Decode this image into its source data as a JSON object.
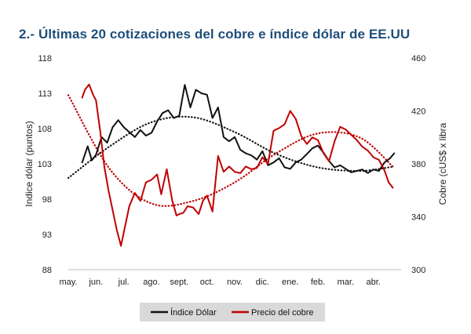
{
  "title": "2.- Últimas 20 cotizaciones del cobre e índice dólar de EE.UU",
  "colors": {
    "dollar": "#111111",
    "copper": "#c00000",
    "title": "#1f4e79",
    "legend_bg": "#d9d9d9"
  },
  "chart_data": {
    "type": "line",
    "x_categories": [
      "may.",
      "jun.",
      "jul.",
      "ago.",
      "sept.",
      "oct.",
      "nov.",
      "dic.",
      "ene.",
      "feb.",
      "mar.",
      "abr."
    ],
    "y_left": {
      "label": "Indice dólar (puntos)",
      "ticks": [
        88,
        93,
        98,
        103,
        108,
        113,
        118
      ],
      "range": [
        88,
        118
      ]
    },
    "y_right": {
      "label": "Cobre (cUS$ x libra",
      "ticks": [
        300,
        340,
        380,
        420,
        460
      ],
      "range": [
        300,
        460
      ]
    },
    "series": [
      {
        "name": "Índice Dólar",
        "axis": "left",
        "color": "#111111",
        "x": [
          0.5,
          0.7,
          0.85,
          1.0,
          1.2,
          1.4,
          1.6,
          1.8,
          2.0,
          2.2,
          2.4,
          2.6,
          2.8,
          3.0,
          3.2,
          3.4,
          3.6,
          3.8,
          4.0,
          4.2,
          4.4,
          4.6,
          4.8,
          5.0,
          5.2,
          5.4,
          5.6,
          5.8,
          6.0,
          6.2,
          6.4,
          6.6,
          6.8,
          7.0,
          7.2,
          7.4,
          7.6,
          7.8,
          8.0,
          8.2,
          8.4,
          8.6,
          8.8,
          9.0,
          9.2,
          9.4,
          9.6,
          9.8,
          10.0,
          10.2,
          10.4,
          10.6,
          10.8,
          11.0,
          11.2,
          11.4,
          11.6,
          11.75
        ],
        "y": [
          103.2,
          105.5,
          103.5,
          104.3,
          106.8,
          106.0,
          108.2,
          109.2,
          108.2,
          107.5,
          106.8,
          107.8,
          107.0,
          107.4,
          109.0,
          110.2,
          110.6,
          109.5,
          109.8,
          114.2,
          111.0,
          113.5,
          113.0,
          112.8,
          109.5,
          111.0,
          106.8,
          106.2,
          106.8,
          105.0,
          104.5,
          104.2,
          103.6,
          104.8,
          102.8,
          103.2,
          103.8,
          102.5,
          102.3,
          103.2,
          103.6,
          104.4,
          105.2,
          105.6,
          104.6,
          103.4,
          102.5,
          102.8,
          102.3,
          101.8,
          102.0,
          102.2,
          101.7,
          102.2,
          102.0,
          103.2,
          103.8,
          104.5
        ]
      },
      {
        "name": "Precio del cobre",
        "axis": "right",
        "color": "#c00000",
        "x": [
          0.5,
          0.6,
          0.75,
          0.9,
          1.0,
          1.15,
          1.3,
          1.45,
          1.6,
          1.75,
          1.9,
          2.05,
          2.2,
          2.4,
          2.6,
          2.8,
          3.0,
          3.2,
          3.35,
          3.55,
          3.75,
          3.9,
          4.0,
          4.15,
          4.3,
          4.5,
          4.7,
          4.85,
          5.0,
          5.2,
          5.4,
          5.6,
          5.8,
          6.0,
          6.2,
          6.4,
          6.6,
          6.8,
          7.0,
          7.2,
          7.4,
          7.6,
          7.8,
          8.0,
          8.2,
          8.4,
          8.6,
          8.8,
          9.0,
          9.2,
          9.4,
          9.6,
          9.8,
          10.0,
          10.2,
          10.4,
          10.6,
          10.8,
          11.0,
          11.2,
          11.4,
          11.55,
          11.7
        ],
        "y": [
          430,
          436,
          440,
          432,
          428,
          405,
          378,
          360,
          345,
          330,
          318,
          333,
          348,
          358,
          352,
          366,
          368,
          372,
          357,
          376,
          352,
          341,
          342,
          343,
          348,
          347,
          342,
          352,
          356,
          344,
          386,
          374,
          378,
          374,
          373,
          378,
          376,
          377,
          385,
          380,
          405,
          407,
          410,
          420,
          414,
          401,
          395,
          400,
          398,
          388,
          382,
          397,
          408,
          406,
          402,
          398,
          393,
          390,
          385,
          383,
          375,
          366,
          362
        ]
      },
      {
        "name": "",
        "axis": "left",
        "style": "dotted",
        "color": "#111111",
        "x": [
          0,
          1.5,
          3.0,
          4.5,
          6.0,
          7.5,
          9.0,
          10.5,
          11.7
        ],
        "y": [
          101.0,
          105.5,
          108.9,
          109.6,
          107.5,
          104.4,
          102.5,
          102.0,
          102.6
        ]
      },
      {
        "name": "",
        "axis": "right",
        "style": "dotted",
        "color": "#c00000",
        "x": [
          0,
          1.5,
          3.0,
          4.5,
          6.0,
          7.5,
          9.0,
          10.5,
          11.7
        ],
        "y": [
          432,
          376,
          350,
          352,
          366,
          388,
          403,
          400,
          378
        ]
      }
    ],
    "legend": {
      "position": "bottom",
      "entries": [
        "Índice Dólar",
        "Precio del cobre"
      ]
    },
    "grid": false
  }
}
